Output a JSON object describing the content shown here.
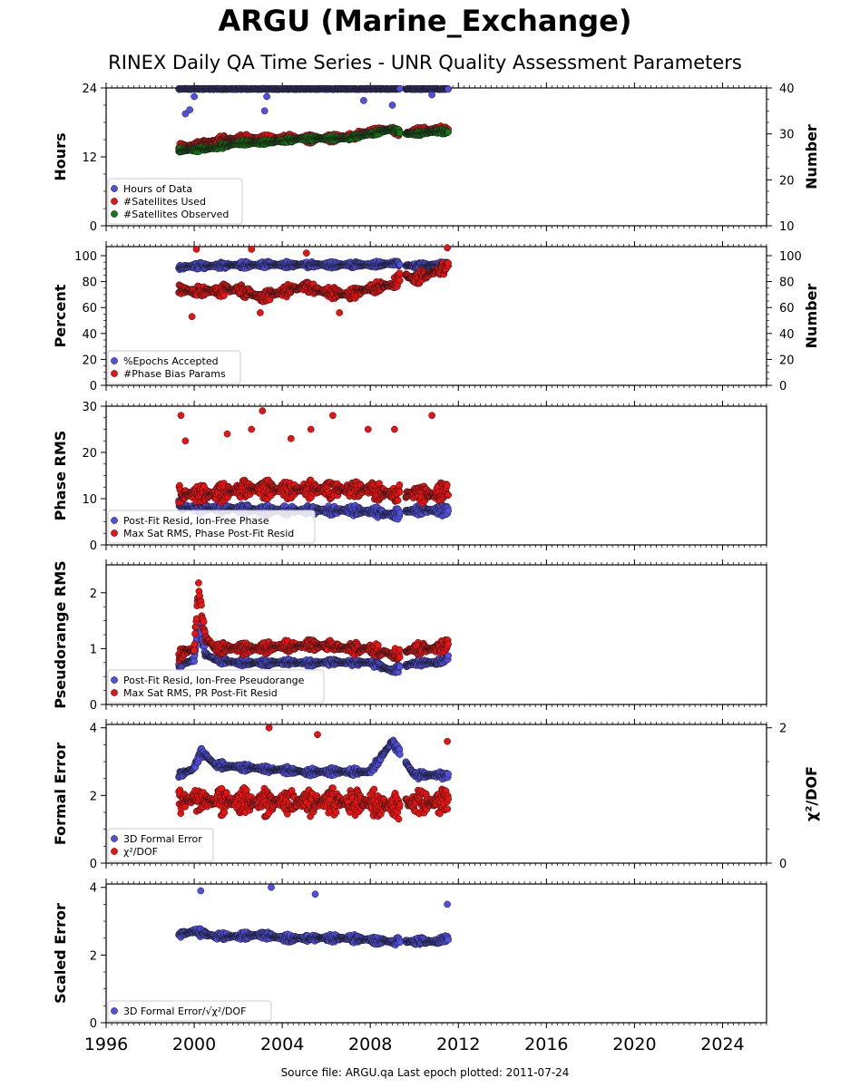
{
  "title": "ARGU (Marine_Exchange)",
  "subtitle": "RINEX Daily QA Time Series - UNR Quality Assessment Parameters",
  "footer": "Source file: ARGU.qa Last epoch plotted: 2011-07-24",
  "colors": {
    "blue": "#5050e8",
    "red": "#ee1111",
    "green": "#127a12",
    "edge": "#1a1a1a"
  },
  "chart_data": [
    {
      "type": "scatter",
      "ylabel": "Hours",
      "ylabel_right": "Number",
      "xlim": [
        1996,
        2026
      ],
      "ylim": [
        0,
        24
      ],
      "ylim_right": [
        10,
        40
      ],
      "yticks": [
        0,
        12,
        24
      ],
      "yticks_right": [
        10,
        20,
        30,
        40
      ],
      "xticks": [
        1996,
        2000,
        2004,
        2008,
        2012,
        2016,
        2020,
        2024
      ],
      "legend_position": "bottom-left",
      "series": [
        {
          "name": "Hours of Data",
          "color": "blue",
          "axis": "left",
          "x": [
            1999.3,
            2000.0,
            2001.0,
            2002.0,
            2003.0,
            2004.0,
            2005.0,
            2006.0,
            2007.0,
            2008.0,
            2009.0,
            2010.0,
            2011.0,
            2011.55
          ],
          "y": [
            23.9,
            23.9,
            23.9,
            23.9,
            23.9,
            23.9,
            23.9,
            23.9,
            23.9,
            23.9,
            23.9,
            23.9,
            23.9,
            23.9
          ],
          "outliers": [
            [
              1999.6,
              19.5
            ],
            [
              1999.8,
              20.2
            ],
            [
              2000.0,
              22.5
            ],
            [
              2003.2,
              20.0
            ],
            [
              2003.3,
              22.5
            ],
            [
              2007.7,
              21.8
            ],
            [
              2009.0,
              21.0
            ],
            [
              2010.8,
              22.8
            ]
          ]
        },
        {
          "name": "#Satellites Used",
          "color": "red",
          "axis": "right",
          "x": [
            1999.3,
            2000.0,
            2001.0,
            2002.0,
            2003.0,
            2004.0,
            2005.0,
            2006.0,
            2007.0,
            2008.0,
            2009.0,
            2009.5,
            2010.0,
            2011.0,
            2011.55
          ],
          "y": [
            27.0,
            27.5,
            28.5,
            29.0,
            29.0,
            29.0,
            29.0,
            29.0,
            29.5,
            30.5,
            31.0,
            30.0,
            30.5,
            31.0,
            31.0
          ]
        },
        {
          "name": "#Satellites Observed",
          "color": "green",
          "axis": "right",
          "x": [
            1999.3,
            2000.0,
            2001.0,
            2002.0,
            2003.0,
            2004.0,
            2005.0,
            2006.0,
            2007.0,
            2008.0,
            2009.0,
            2009.5,
            2010.0,
            2011.0,
            2011.55
          ],
          "y": [
            26.5,
            26.5,
            27.0,
            28.0,
            28.0,
            28.5,
            29.0,
            29.0,
            29.0,
            30.0,
            31.0,
            30.0,
            30.0,
            30.5,
            30.5
          ]
        }
      ]
    },
    {
      "type": "scatter",
      "ylabel": "Percent",
      "ylabel_right": "Number",
      "xlim": [
        1996,
        2026
      ],
      "ylim": [
        0,
        107
      ],
      "ylim_right": [
        0,
        107
      ],
      "yticks": [
        0,
        20,
        40,
        60,
        80,
        100
      ],
      "yticks_right": [
        0,
        20,
        40,
        60,
        80,
        100
      ],
      "xticks": [
        1996,
        2000,
        2004,
        2008,
        2012,
        2016,
        2020,
        2024
      ],
      "legend_position": "bottom-left",
      "series": [
        {
          "name": "%Epochs Accepted",
          "color": "blue",
          "axis": "left",
          "x": [
            1999.3,
            2000.0,
            2001.0,
            2002.0,
            2003.0,
            2004.0,
            2005.0,
            2006.0,
            2007.0,
            2008.0,
            2009.0,
            2010.0,
            2011.0,
            2011.55
          ],
          "y": [
            91,
            92,
            92,
            93,
            93,
            93,
            93,
            93,
            93,
            93,
            94,
            92,
            93,
            93
          ]
        },
        {
          "name": "#Phase Bias Params",
          "color": "red",
          "axis": "right",
          "x": [
            1999.3,
            2000.0,
            2001.0,
            2002.0,
            2003.0,
            2004.0,
            2005.0,
            2006.0,
            2007.0,
            2008.0,
            2009.0,
            2009.5,
            2010.0,
            2011.0,
            2011.55
          ],
          "y": [
            75,
            72,
            73,
            74,
            68,
            72,
            76,
            72,
            70,
            75,
            78,
            85,
            82,
            88,
            92
          ],
          "outliers": [
            [
              1999.9,
              53
            ],
            [
              2000.1,
              105
            ],
            [
              2002.6,
              105
            ],
            [
              2003.0,
              56
            ],
            [
              2005.1,
              102
            ],
            [
              2006.6,
              56
            ],
            [
              2011.5,
              106
            ]
          ]
        }
      ]
    },
    {
      "type": "scatter",
      "ylabel": "Phase RMS",
      "xlim": [
        1996,
        2026
      ],
      "ylim": [
        0,
        30
      ],
      "yticks": [
        0,
        10,
        20,
        30
      ],
      "xticks": [
        1996,
        2000,
        2004,
        2008,
        2012,
        2016,
        2020,
        2024
      ],
      "legend_position": "bottom-left",
      "series": [
        {
          "name": "Post-Fit Resid, Ion-Free Phase",
          "color": "blue",
          "x": [
            1999.3,
            2000.0,
            2001.0,
            2002.0,
            2003.0,
            2004.0,
            2005.0,
            2006.0,
            2007.0,
            2008.0,
            2009.0,
            2010.0,
            2011.0,
            2011.55
          ],
          "y": [
            8.5,
            8.0,
            8.0,
            7.8,
            7.5,
            7.5,
            7.5,
            7.5,
            7.5,
            7.2,
            6.5,
            7.5,
            7.5,
            7.5
          ]
        },
        {
          "name": "Max Sat RMS, Phase Post-Fit Resid",
          "color": "red",
          "x": [
            1999.3,
            2000.0,
            2001.0,
            2002.0,
            2003.0,
            2004.0,
            2005.0,
            2006.0,
            2007.0,
            2008.0,
            2009.0,
            2010.0,
            2011.0,
            2011.55
          ],
          "y": [
            11,
            11,
            11,
            12,
            12,
            12,
            12,
            12,
            12,
            12,
            11,
            11,
            11,
            12
          ],
          "outliers": [
            [
              1999.4,
              28
            ],
            [
              1999.6,
              22.5
            ],
            [
              2001.5,
              24
            ],
            [
              2002.6,
              25
            ],
            [
              2003.1,
              29
            ],
            [
              2004.4,
              23
            ],
            [
              2005.3,
              25
            ],
            [
              2006.3,
              28
            ],
            [
              2007.9,
              25
            ],
            [
              2009.1,
              25
            ],
            [
              2010.8,
              28
            ]
          ]
        }
      ]
    },
    {
      "type": "scatter",
      "ylabel": "Pseudorange RMS",
      "xlim": [
        1996,
        2026
      ],
      "ylim": [
        0,
        2.5
      ],
      "yticks": [
        0,
        1,
        2
      ],
      "xticks": [
        1996,
        2000,
        2004,
        2008,
        2012,
        2016,
        2020,
        2024
      ],
      "legend_position": "bottom-left",
      "series": [
        {
          "name": "Post-Fit Resid, Ion-Free Pseudorange",
          "color": "blue",
          "x": [
            1999.3,
            2000.0,
            2000.2,
            2000.5,
            2001.0,
            2002.0,
            2003.0,
            2004.0,
            2005.0,
            2006.0,
            2007.0,
            2008.0,
            2009.0,
            2010.0,
            2011.0,
            2011.55
          ],
          "y": [
            0.7,
            0.8,
            1.5,
            0.9,
            0.8,
            0.75,
            0.75,
            0.75,
            0.75,
            0.75,
            0.75,
            0.75,
            0.6,
            0.75,
            0.75,
            0.85
          ]
        },
        {
          "name": "Max Sat RMS, PR Post-Fit Resid",
          "color": "red",
          "x": [
            1999.3,
            2000.0,
            2000.2,
            2000.5,
            2001.0,
            2002.0,
            2003.0,
            2004.0,
            2005.0,
            2006.0,
            2007.0,
            2008.0,
            2009.0,
            2010.0,
            2011.0,
            2011.55
          ],
          "y": [
            0.9,
            1.0,
            2.1,
            1.2,
            1.0,
            1.0,
            1.0,
            1.05,
            1.05,
            1.05,
            1.0,
            1.0,
            0.9,
            1.0,
            1.0,
            1.1
          ]
        }
      ]
    },
    {
      "type": "scatter",
      "ylabel": "Formal Error",
      "ylabel_right": "χ²/DOF",
      "xlim": [
        1996,
        2026
      ],
      "ylim": [
        0,
        4.1
      ],
      "ylim_right": [
        0,
        2.05
      ],
      "yticks": [
        0,
        2,
        4
      ],
      "yticks_right": [
        0,
        2
      ],
      "xticks": [
        1996,
        2000,
        2004,
        2008,
        2012,
        2016,
        2020,
        2024
      ],
      "legend_position": "bottom-left",
      "series": [
        {
          "name": "3D Formal Error",
          "color": "blue",
          "axis": "left",
          "x": [
            1999.3,
            2000.0,
            2000.3,
            2001.0,
            2002.0,
            2003.0,
            2004.0,
            2005.0,
            2006.0,
            2007.0,
            2008.0,
            2009.0,
            2010.0,
            2011.0,
            2011.55
          ],
          "y": [
            2.6,
            2.8,
            3.3,
            2.9,
            2.85,
            2.8,
            2.75,
            2.7,
            2.7,
            2.7,
            2.7,
            3.6,
            2.6,
            2.6,
            2.6
          ]
        },
        {
          "name": "χ²/DOF",
          "color": "red",
          "axis": "right",
          "x": [
            1999.3,
            2000.0,
            2001.0,
            2002.0,
            2003.0,
            2004.0,
            2005.0,
            2006.0,
            2007.0,
            2008.0,
            2009.0,
            2010.0,
            2011.0,
            2011.55
          ],
          "y": [
            0.9,
            0.95,
            0.9,
            0.9,
            0.9,
            0.9,
            0.9,
            0.9,
            0.9,
            0.9,
            0.85,
            0.9,
            0.9,
            0.9
          ],
          "outliers": [
            [
              2003.4,
              2.0
            ],
            [
              2005.6,
              1.9
            ],
            [
              2011.5,
              1.8
            ]
          ]
        }
      ]
    },
    {
      "type": "scatter",
      "ylabel": "Scaled Error",
      "xlim": [
        1996,
        2026
      ],
      "ylim": [
        0,
        4.1
      ],
      "yticks": [
        0,
        2,
        4
      ],
      "xticks": [
        1996,
        2000,
        2004,
        2008,
        2012,
        2016,
        2020,
        2024
      ],
      "legend_position": "bottom-left",
      "series": [
        {
          "name": "3D Formal Error/√χ²/DOF",
          "color": "blue",
          "x": [
            1999.3,
            2000.0,
            2001.0,
            2002.0,
            2003.0,
            2004.0,
            2005.0,
            2006.0,
            2007.0,
            2008.0,
            2009.0,
            2010.0,
            2011.0,
            2011.55
          ],
          "y": [
            2.6,
            2.7,
            2.55,
            2.55,
            2.6,
            2.5,
            2.5,
            2.5,
            2.5,
            2.45,
            2.4,
            2.4,
            2.4,
            2.5
          ],
          "outliers": [
            [
              2000.3,
              3.9
            ],
            [
              2003.5,
              4.0
            ],
            [
              2005.5,
              3.8
            ],
            [
              2011.5,
              3.5
            ]
          ]
        }
      ]
    }
  ]
}
